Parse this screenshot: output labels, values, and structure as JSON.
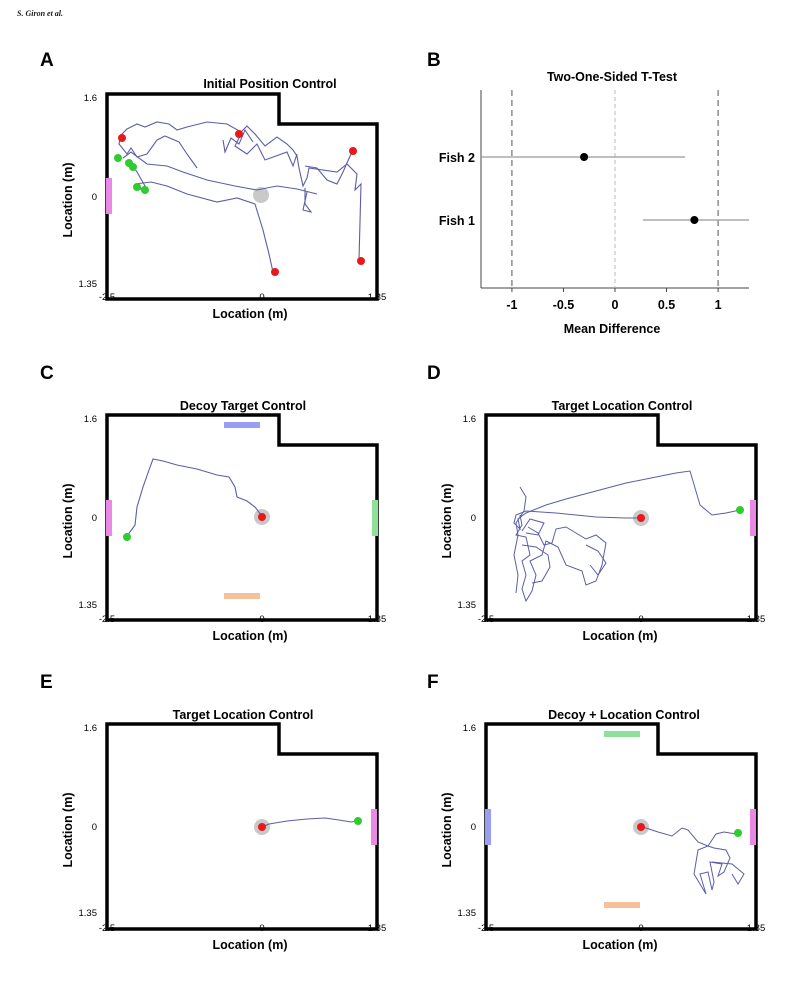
{
  "header": "S. Giron et al.",
  "panels": [
    {
      "id": "A",
      "title": "Initial Position Control"
    },
    {
      "id": "B",
      "title": "Two-One-Sided T-Test"
    },
    {
      "id": "C",
      "title": "Decoy Target Control"
    },
    {
      "id": "D",
      "title": "Target Location Control"
    },
    {
      "id": "E",
      "title": "Target Location Control"
    },
    {
      "id": "F",
      "title": "Decoy + Location Control"
    }
  ],
  "arena_axes": {
    "xlabel": "Location (m)",
    "ylabel": "Location (m)",
    "xticks": [
      "-2.5",
      "0",
      "1.85"
    ],
    "yticks": [
      "1.6",
      "0",
      "1.35"
    ]
  },
  "chart_data": [
    {
      "panel": "B",
      "type": "scatter",
      "title": "Two-One-Sided T-Test",
      "xlabel": "Mean Difference",
      "ylabel": "",
      "xlim": [
        -1.3,
        1.3
      ],
      "xticks": [
        "-1",
        "-0.5",
        "0",
        "0.5",
        "1"
      ],
      "xtick_values": [
        -1,
        -0.5,
        0,
        0.5,
        1
      ],
      "categories": [
        "Fish 2",
        "Fish 1"
      ],
      "points": [
        {
          "label": "Fish 2",
          "mean": -0.3,
          "ci": [
            -1.3,
            0.68
          ]
        },
        {
          "label": "Fish 1",
          "mean": 0.77,
          "ci": [
            0.27,
            1.3
          ]
        }
      ],
      "equivalence_bounds": [
        -1,
        1
      ],
      "zero_line": 0
    }
  ],
  "colors": {
    "trajectory": "#5b5ea6",
    "start": "#2ecc2e",
    "target": "#e8191a",
    "pink": "#ea88e6",
    "blue": "#9a9ef2",
    "green": "#8fe09a",
    "orange": "#f5c09a",
    "grey": "#c9c9c9"
  }
}
